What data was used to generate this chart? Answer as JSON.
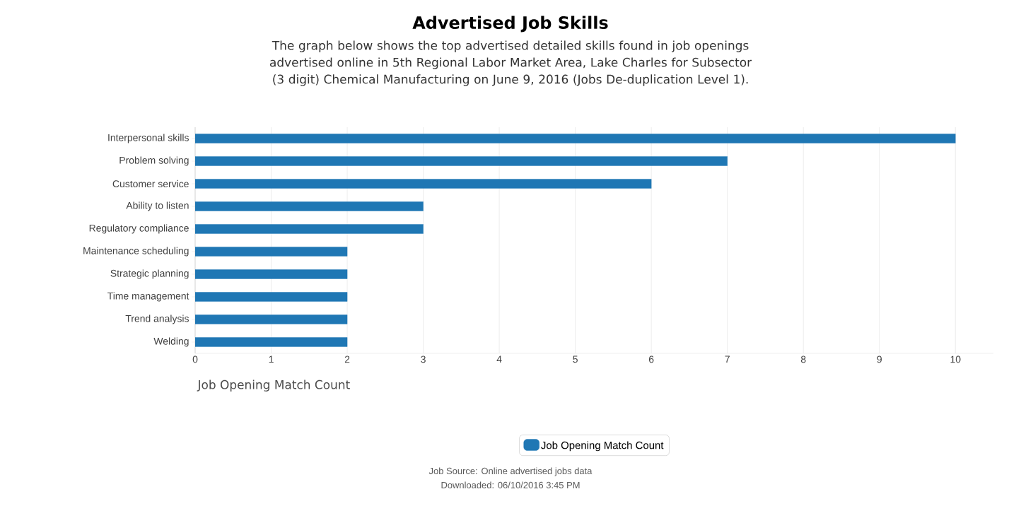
{
  "chart_data": {
    "type": "bar",
    "orientation": "horizontal",
    "title": "Advertised Job Skills",
    "subtitle": "The graph below shows the top advertised detailed skills found in job openings advertised online in 5th Regional Labor Market Area, Lake Charles for Subsector (3 digit) Chemical Manufacturing on June 9, 2016 (Jobs De-duplication Level 1).",
    "categories": [
      "Interpersonal skills",
      "Problem solving",
      "Customer service",
      "Ability to listen",
      "Regulatory compliance",
      "Maintenance scheduling",
      "Strategic planning",
      "Time management",
      "Trend analysis",
      "Welding"
    ],
    "series": [
      {
        "name": "Job Opening Match Count",
        "color": "#1f77b4",
        "values": [
          10,
          7,
          6,
          3,
          3,
          2,
          2,
          2,
          2,
          2
        ]
      }
    ],
    "xlabel": "Job Opening Match Count",
    "xlim": [
      0,
      10.5
    ],
    "xticks": [
      0,
      1,
      2,
      3,
      4,
      5,
      6,
      7,
      8,
      9,
      10
    ],
    "grid": "x",
    "legend": "bottom",
    "annotations": [
      "Job Source: Online advertised jobs data",
      "Downloaded: 06/10/2016 3:45 PM"
    ]
  }
}
